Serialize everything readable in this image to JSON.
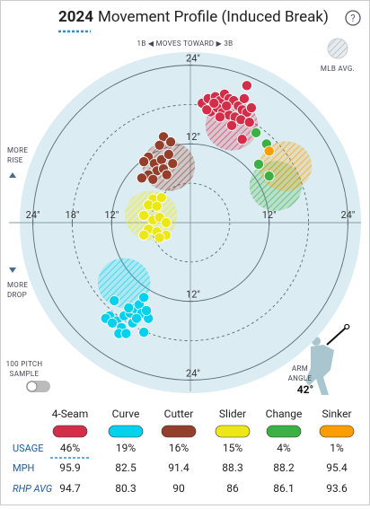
{
  "chart_data": {
    "type": "scatter",
    "title_year": "2024",
    "title": "Movement Profile (Induced Break)",
    "help": "?",
    "direction_label": "1B ◀ MOVES TOWARD ▶ 3B",
    "mlb_avg_label": "MLB AVG.",
    "rise_label": [
      "MORE",
      "RISE"
    ],
    "drop_label": [
      "MORE",
      "DROP"
    ],
    "sample_label": [
      "100 PITCH",
      "SAMPLE"
    ],
    "arm_angle_label": [
      "ARM",
      "ANGLE"
    ],
    "arm_angle": {
      "value": 42,
      "label": "42°"
    },
    "xlim": [
      -26,
      26
    ],
    "ylim": [
      -26,
      26
    ],
    "rings": [
      6,
      12,
      18,
      24
    ],
    "xticks": [
      {
        "value": -24,
        "label": "24\""
      },
      {
        "value": -18,
        "label": "18\""
      },
      {
        "value": -12,
        "label": "12\""
      },
      {
        "value": 12,
        "label": "12\""
      },
      {
        "value": 24,
        "label": "24\""
      }
    ],
    "yticks": [
      {
        "value": 24,
        "label": "24\""
      },
      {
        "value": 12,
        "label": "12\""
      },
      {
        "value": -12,
        "label": "12\""
      },
      {
        "value": -24,
        "label": "24\""
      }
    ],
    "row_labels": [
      "USAGE",
      "MPH",
      "RHP AVG"
    ],
    "series": [
      {
        "name": "4-Seam",
        "color": "#d22d49",
        "usage": "46%",
        "mph": 95.9,
        "rhp_avg": 94.7,
        "avg_x": 6.3,
        "avg_y": 14.8,
        "x": [
          1.8,
          2.7,
          3.8,
          4.5,
          5.2,
          5.9,
          6.6,
          7.3,
          7.9,
          8.6,
          9.3,
          3.1,
          4.1,
          4.9,
          5.9,
          6.8,
          7.7,
          6.3,
          4.5,
          2.5,
          8.2,
          9.0,
          5.5,
          3.6,
          8.6,
          7.9
        ],
        "y": [
          18.2,
          18.9,
          19.2,
          18.6,
          19.6,
          18.9,
          18.6,
          17.8,
          17.2,
          16.8,
          17.5,
          16.9,
          17.5,
          16.8,
          16.4,
          16.1,
          15.7,
          14.8,
          16.1,
          17.2,
          18.9,
          15.3,
          17.8,
          18.2,
          20.9,
          12.7
        ]
      },
      {
        "name": "Curve",
        "color": "#00d1ed",
        "usage": "19%",
        "mph": 82.5,
        "rhp_avg": 80.3,
        "avg_x": -10.1,
        "avg_y": -9.2,
        "x": [
          -11.6,
          -12.3,
          -12.9,
          -11.2,
          -10.1,
          -9.2,
          -8.5,
          -7.8,
          -7.1,
          -7.4,
          -6.4,
          -8.8,
          -10.5,
          -10.9,
          -9.8,
          -8.2,
          -11.9,
          -9.4,
          -7.1,
          -6.7
        ],
        "y": [
          -11.9,
          -14.2,
          -14.6,
          -15.0,
          -14.2,
          -13.8,
          -13.1,
          -12.5,
          -11.4,
          -13.8,
          -14.6,
          -15.3,
          -16.0,
          -16.9,
          -16.9,
          -14.6,
          -15.3,
          -13.0,
          -16.7,
          -13.4
        ]
      },
      {
        "name": "Cutter",
        "color": "#933f2c",
        "usage": "16%",
        "mph": 91.4,
        "rhp_avg": 90.0,
        "avg_x": -3.3,
        "avg_y": 8.6,
        "x": [
          -4.1,
          -3.0,
          -4.7,
          -6.4,
          -7.1,
          -5.5,
          -4.4,
          -3.3,
          -5.1,
          -6.4,
          -7.4,
          -5.7,
          -4.1,
          -2.7,
          -3.6
        ],
        "y": [
          13.1,
          12.3,
          11.8,
          10.0,
          9.3,
          9.0,
          9.6,
          10.4,
          7.9,
          7.3,
          6.8,
          6.6,
          8.2,
          9.0,
          7.3
        ]
      },
      {
        "name": "Slider",
        "color": "#eee716",
        "usage": "15%",
        "mph": 88.3,
        "rhp_avg": 86.0,
        "avg_x": -6.0,
        "avg_y": 1.1,
        "x": [
          -5.7,
          -4.4,
          -6.4,
          -5.1,
          -7.1,
          -5.7,
          -4.7,
          -3.7,
          -6.4,
          -5.1,
          -3.7,
          -7.1,
          -4.7
        ],
        "y": [
          3.6,
          3.8,
          2.7,
          2.5,
          1.1,
          0.4,
          0.8,
          0.0,
          -1.0,
          -1.4,
          -1.9,
          -1.9,
          -2.3
        ]
      },
      {
        "name": "Change",
        "color": "#3bb143",
        "usage": "4%",
        "mph": 88.2,
        "rhp_avg": 86.1,
        "avg_x": 13.0,
        "avg_y": 5.6,
        "x": [
          10.0,
          11.6,
          10.4,
          12.0
        ],
        "y": [
          13.7,
          12.0,
          8.9,
          7.1
        ]
      },
      {
        "name": "Sinker",
        "color": "#fe9d00",
        "usage": "1%",
        "mph": 95.4,
        "rhp_avg": 93.6,
        "avg_x": 14.5,
        "avg_y": 8.6,
        "x": [
          12.0
        ],
        "y": [
          10.9
        ]
      }
    ]
  }
}
